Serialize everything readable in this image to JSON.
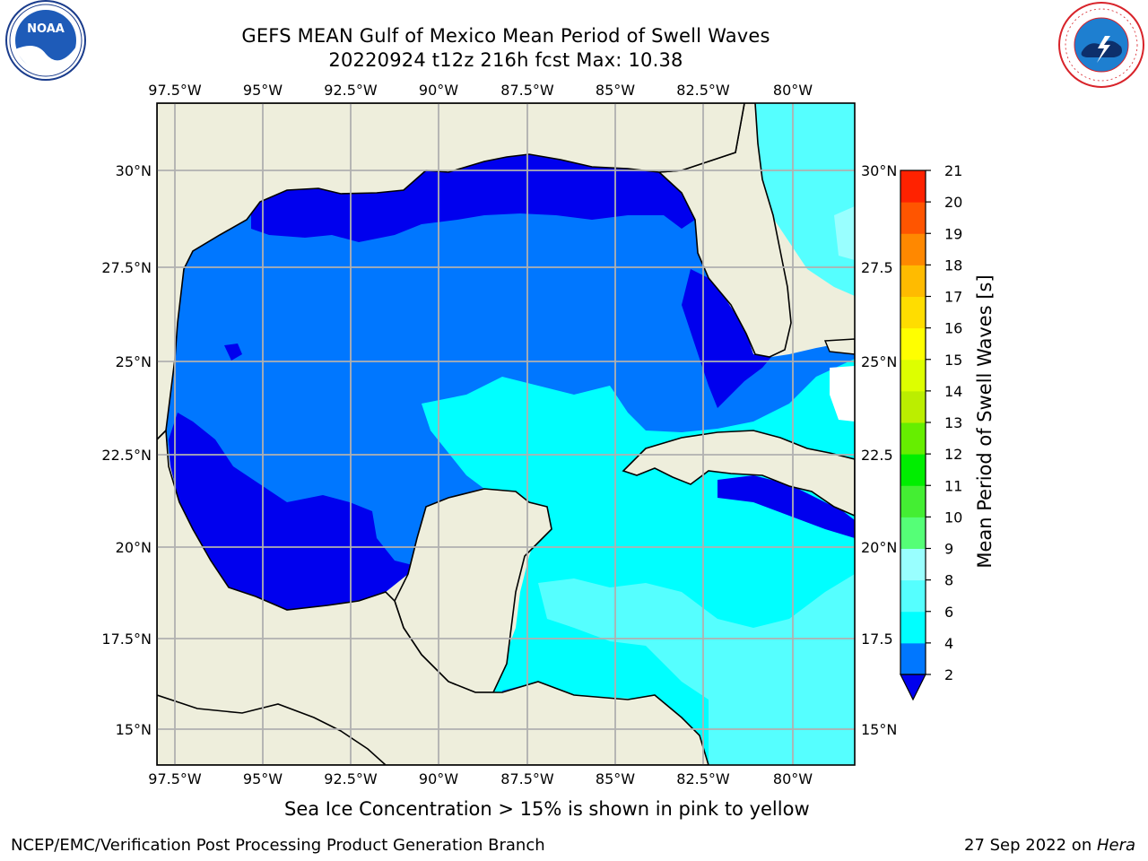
{
  "title": {
    "line1": "GEFS MEAN Gulf of Mexico Mean Period of Swell Waves",
    "line2": "20220924 t12z 216h fcst   Max: 10.38"
  },
  "logos": {
    "noaa": {
      "text": "NOAA",
      "ring_text": "NATIONAL OCEANIC AND ATMOSPHERIC ADMINISTRATION · U.S. DEPARTMENT OF COMMERCE"
    },
    "nws": {
      "ring_text": "NATIONAL WEATHER SERVICE"
    }
  },
  "map": {
    "lon_ticks": [
      "97.5°W",
      "95°W",
      "92.5°W",
      "90°W",
      "87.5°W",
      "85°W",
      "82.5°W",
      "80°W"
    ],
    "lat_ticks_left": [
      "30°N",
      "27.5°N",
      "25°N",
      "22.5°N",
      "20°N",
      "17.5°N",
      "15°N"
    ],
    "lat_ticks_right": [
      "30°N",
      "27.5",
      "25°N",
      "22.5",
      "20°N",
      "17.5",
      "15°N"
    ],
    "grid": true,
    "colors": {
      "land": "#eeeedc",
      "coast": "#000000",
      "grid": "#b0b0b0"
    }
  },
  "colorbar": {
    "label": "Mean Period of Swell Waves [s]",
    "ticks": [
      "2",
      "4",
      "6",
      "8",
      "9",
      "10",
      "11",
      "12",
      "13",
      "14",
      "15",
      "16",
      "17",
      "18",
      "19",
      "20",
      "21"
    ],
    "colors": [
      "#0000ff",
      "#0077ff",
      "#00ffff",
      "#55ffff",
      "#99ffff",
      "#55ff77",
      "#44ee33",
      "#00ee00",
      "#66ee00",
      "#bbee00",
      "#ddff00",
      "#ffff00",
      "#ffdd00",
      "#ffbb00",
      "#ff8800",
      "#ff5500",
      "#ff2200",
      "#ff0000"
    ],
    "extend_min_color": "#0000ee"
  },
  "footer": {
    "note": "Sea Ice Concentration > 15% is shown in pink to yellow",
    "credit_left": "NCEP/EMC/Verification Post Processing Product Generation Branch",
    "credit_date": "27 Sep 2022 on ",
    "credit_host": "Hera"
  }
}
